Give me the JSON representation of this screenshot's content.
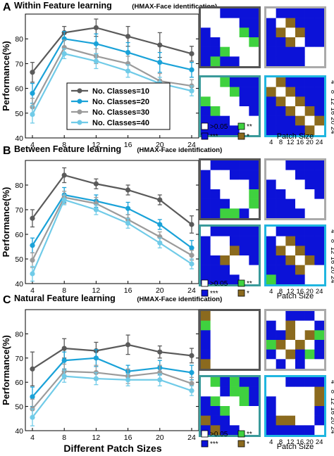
{
  "colors": {
    "series": [
      "#5a5a5a",
      "#1aa2d8",
      "#9b9b9b",
      "#70cbe8"
    ],
    "ns": "#ffffff",
    "p01": "#3fd13f",
    "p001": "#0c12d8",
    "p05": "#8b6a1e",
    "frame_dark": "#555555",
    "frame_teal": "#3a9a9a",
    "frame_gray": "#aaaaaa",
    "frame_cyan": "#20b6e0"
  },
  "common": {
    "ylabel": "Performance(%)",
    "xlabel": "Different Patch Sizes",
    "patch_size_label": "Patch Size",
    "tick_labels": [
      "4",
      "8",
      "12",
      "16",
      "20",
      "24"
    ],
    "sig_legend": {
      "ns": ">0.05",
      "p01": "**",
      "p001": "***",
      "p05": "*"
    }
  },
  "chart_data": [
    {
      "type": "line",
      "panel_letter": "A",
      "title": "Within Feature learning",
      "subtitle": "(HMAX-Face identification)",
      "x": [
        4,
        8,
        12,
        16,
        20,
        24
      ],
      "xlim": [
        4,
        24
      ],
      "ylim": [
        40,
        90
      ],
      "yticks": [
        40,
        50,
        60,
        70,
        80
      ],
      "legend": "center-left",
      "series": [
        {
          "name": "No. Classes=10",
          "values": [
            66.5,
            82.5,
            84.5,
            81,
            77.5,
            74
          ],
          "err": [
            4,
            2.5,
            3.5,
            4,
            5,
            3
          ]
        },
        {
          "name": "No. Classes=20",
          "values": [
            58,
            80,
            78,
            74.5,
            70.5,
            67.5
          ],
          "err": [
            4,
            3,
            4,
            4,
            4,
            3
          ]
        },
        {
          "name": "No. Classes=30",
          "values": [
            52.5,
            76.5,
            73,
            70,
            63,
            61
          ],
          "err": [
            3.5,
            3,
            3,
            3,
            3,
            2.5
          ]
        },
        {
          "name": "No. Classes=40",
          "values": [
            49.5,
            74,
            71,
            67,
            62,
            59
          ],
          "err": [
            3.5,
            2,
            3,
            2.5,
            2.5,
            2
          ]
        }
      ]
    },
    {
      "type": "line",
      "panel_letter": "B",
      "title": "Between Feature learning",
      "subtitle": "(HMAX-Face identification)",
      "x": [
        4,
        8,
        12,
        16,
        20,
        24
      ],
      "xlim": [
        4,
        24
      ],
      "ylim": [
        40,
        90
      ],
      "yticks": [
        40,
        50,
        60,
        70,
        80
      ],
      "series": [
        {
          "name": "No. Classes=10",
          "values": [
            66.5,
            84,
            80.5,
            78,
            74,
            64
          ],
          "err": [
            3.5,
            3,
            2,
            2,
            2,
            3.5
          ]
        },
        {
          "name": "No. Classes=20",
          "values": [
            55.5,
            76,
            73.5,
            70.5,
            64,
            54.5
          ],
          "err": [
            3,
            3,
            2.5,
            2.5,
            2,
            3
          ]
        },
        {
          "name": "No. Classes=30",
          "values": [
            49.5,
            75,
            72.5,
            66,
            59,
            51.5
          ],
          "err": [
            3,
            2.5,
            2.5,
            2,
            2,
            2
          ]
        },
        {
          "name": "No. Classes=40",
          "values": [
            44,
            74,
            70,
            64.5,
            56.5,
            48
          ],
          "err": [
            3,
            2,
            2,
            2,
            2,
            2
          ]
        }
      ]
    },
    {
      "type": "line",
      "panel_letter": "C",
      "title": "Natural Feature learning",
      "subtitle": "(HMAX-Face identification)",
      "x": [
        4,
        8,
        12,
        16,
        20,
        24
      ],
      "xlim": [
        4,
        24
      ],
      "ylim": [
        40,
        90
      ],
      "yticks": [
        40,
        50,
        60,
        70,
        80
      ],
      "series": [
        {
          "name": "No. Classes=10",
          "values": [
            65.5,
            74,
            73,
            75.5,
            72.5,
            71
          ],
          "err": [
            7,
            4,
            3.5,
            4,
            2.5,
            3
          ]
        },
        {
          "name": "No. Classes=20",
          "values": [
            54,
            69,
            70,
            64.5,
            66,
            64
          ],
          "err": [
            4,
            3.5,
            3.5,
            2.5,
            3,
            3
          ]
        },
        {
          "name": "No. Classes=30",
          "values": [
            49,
            64.5,
            64,
            62.5,
            64,
            59.5
          ],
          "err": [
            4,
            3,
            3,
            3,
            3,
            2.5
          ]
        },
        {
          "name": "No. Classes=40",
          "values": [
            45.5,
            62.5,
            61.5,
            61,
            61,
            56.5
          ],
          "err": [
            3.5,
            2.5,
            2.5,
            2.5,
            2.5,
            2
          ]
        }
      ]
    },
    {
      "type": "heatmap",
      "panel": "A",
      "codes": "0=>0.05, 1=**, 2=***, 3=*",
      "matrices": [
        {
          "frame": "frame_dark",
          "cells": [
            [
              0,
              0,
              2,
              2,
              2,
              2
            ],
            [
              0,
              0,
              0,
              0,
              2,
              2
            ],
            [
              2,
              0,
              0,
              0,
              1,
              2
            ],
            [
              2,
              2,
              0,
              0,
              0,
              1
            ],
            [
              2,
              2,
              1,
              0,
              0,
              0
            ],
            [
              2,
              1,
              2,
              2,
              0,
              0
            ]
          ]
        },
        {
          "frame": "frame_gray",
          "cells": [
            [
              0,
              2,
              2,
              2,
              2,
              2
            ],
            [
              2,
              0,
              3,
              2,
              2,
              2
            ],
            [
              2,
              3,
              0,
              3,
              2,
              2
            ],
            [
              2,
              2,
              3,
              0,
              2,
              2
            ],
            [
              2,
              2,
              2,
              2,
              0,
              0
            ],
            [
              2,
              2,
              2,
              2,
              0,
              0
            ]
          ]
        },
        {
          "frame": "frame_teal",
          "cells": [
            [
              0,
              0,
              1,
              2,
              2,
              2
            ],
            [
              0,
              0,
              0,
              1,
              2,
              2
            ],
            [
              1,
              0,
              0,
              0,
              2,
              2
            ],
            [
              2,
              1,
              0,
              0,
              0,
              2
            ],
            [
              2,
              2,
              2,
              0,
              0,
              0
            ],
            [
              2,
              2,
              2,
              2,
              0,
              0
            ]
          ]
        },
        {
          "frame": "frame_cyan",
          "cells": [
            [
              0,
              3,
              2,
              2,
              2,
              2
            ],
            [
              3,
              0,
              3,
              2,
              2,
              2
            ],
            [
              2,
              3,
              0,
              3,
              2,
              2
            ],
            [
              2,
              2,
              3,
              0,
              3,
              2
            ],
            [
              2,
              2,
              2,
              3,
              0,
              3
            ],
            [
              2,
              2,
              2,
              2,
              3,
              0
            ]
          ]
        }
      ]
    },
    {
      "type": "heatmap",
      "panel": "B",
      "codes": "0=>0.05, 1=**, 2=***, 3=*",
      "matrices": [
        {
          "frame": "frame_dark",
          "cells": [
            [
              0,
              2,
              2,
              2,
              2,
              2
            ],
            [
              2,
              0,
              0,
              2,
              2,
              2
            ],
            [
              2,
              0,
              0,
              0,
              0,
              2
            ],
            [
              2,
              2,
              0,
              0,
              0,
              1
            ],
            [
              2,
              2,
              2,
              0,
              0,
              1
            ],
            [
              2,
              2,
              1,
              1,
              2,
              0
            ]
          ]
        },
        {
          "frame": "frame_gray",
          "cells": [
            [
              0,
              0,
              2,
              2,
              2,
              2
            ],
            [
              0,
              0,
              0,
              2,
              2,
              2
            ],
            [
              2,
              0,
              0,
              0,
              2,
              2
            ],
            [
              2,
              2,
              0,
              0,
              0,
              2
            ],
            [
              2,
              2,
              2,
              0,
              0,
              0
            ],
            [
              2,
              2,
              2,
              2,
              0,
              0
            ]
          ]
        },
        {
          "frame": "frame_teal",
          "cells": [
            [
              0,
              2,
              2,
              2,
              2,
              2
            ],
            [
              2,
              0,
              0,
              2,
              2,
              2
            ],
            [
              2,
              0,
              0,
              3,
              2,
              2
            ],
            [
              2,
              2,
              3,
              0,
              0,
              2
            ],
            [
              2,
              2,
              2,
              0,
              0,
              0
            ],
            [
              2,
              2,
              2,
              2,
              0,
              0
            ]
          ]
        },
        {
          "frame": "frame_cyan",
          "cells": [
            [
              0,
              2,
              2,
              2,
              2,
              2
            ],
            [
              2,
              0,
              3,
              2,
              2,
              2
            ],
            [
              2,
              3,
              0,
              3,
              2,
              2
            ],
            [
              2,
              2,
              3,
              0,
              3,
              2
            ],
            [
              2,
              2,
              2,
              3,
              0,
              0
            ],
            [
              1,
              2,
              2,
              2,
              0,
              0
            ]
          ]
        }
      ]
    },
    {
      "type": "heatmap",
      "panel": "C",
      "codes": "0=>0.05, 1=**, 2=***, 3=*",
      "matrices": [
        {
          "frame": "frame_dark",
          "cells": [
            [
              3,
              0,
              0,
              0,
              0,
              0
            ],
            [
              1,
              0,
              0,
              0,
              0,
              0
            ],
            [
              2,
              0,
              0,
              0,
              0,
              0
            ],
            [
              2,
              0,
              0,
              0,
              0,
              0
            ],
            [
              2,
              0,
              0,
              0,
              0,
              0
            ],
            [
              3,
              0,
              0,
              0,
              0,
              0
            ]
          ]
        },
        {
          "frame": "frame_gray",
          "cells": [
            [
              0,
              0,
              2,
              2,
              2,
              0
            ],
            [
              2,
              0,
              3,
              0,
              0,
              2
            ],
            [
              2,
              2,
              3,
              0,
              3,
              1
            ],
            [
              1,
              3,
              0,
              3,
              0,
              2
            ],
            [
              2,
              0,
              3,
              2,
              1,
              2
            ],
            [
              0,
              2,
              0,
              2,
              0,
              0
            ]
          ]
        },
        {
          "frame": "frame_teal",
          "cells": [
            [
              0,
              1,
              2,
              1,
              2,
              2
            ],
            [
              0,
              0,
              2,
              1,
              1,
              2
            ],
            [
              2,
              1,
              0,
              0,
              1,
              2
            ],
            [
              2,
              2,
              1,
              0,
              0,
              0
            ],
            [
              3,
              2,
              2,
              0,
              0,
              0
            ],
            [
              2,
              3,
              2,
              2,
              0,
              0
            ]
          ]
        },
        {
          "frame": "frame_cyan",
          "cells": [
            [
              0,
              0,
              2,
              2,
              2,
              2
            ],
            [
              0,
              0,
              0,
              0,
              0,
              3
            ],
            [
              2,
              0,
              0,
              0,
              0,
              3
            ],
            [
              2,
              0,
              0,
              0,
              0,
              2
            ],
            [
              2,
              3,
              3,
              0,
              0,
              2
            ],
            [
              2,
              2,
              2,
              2,
              2,
              0
            ]
          ]
        }
      ]
    }
  ]
}
